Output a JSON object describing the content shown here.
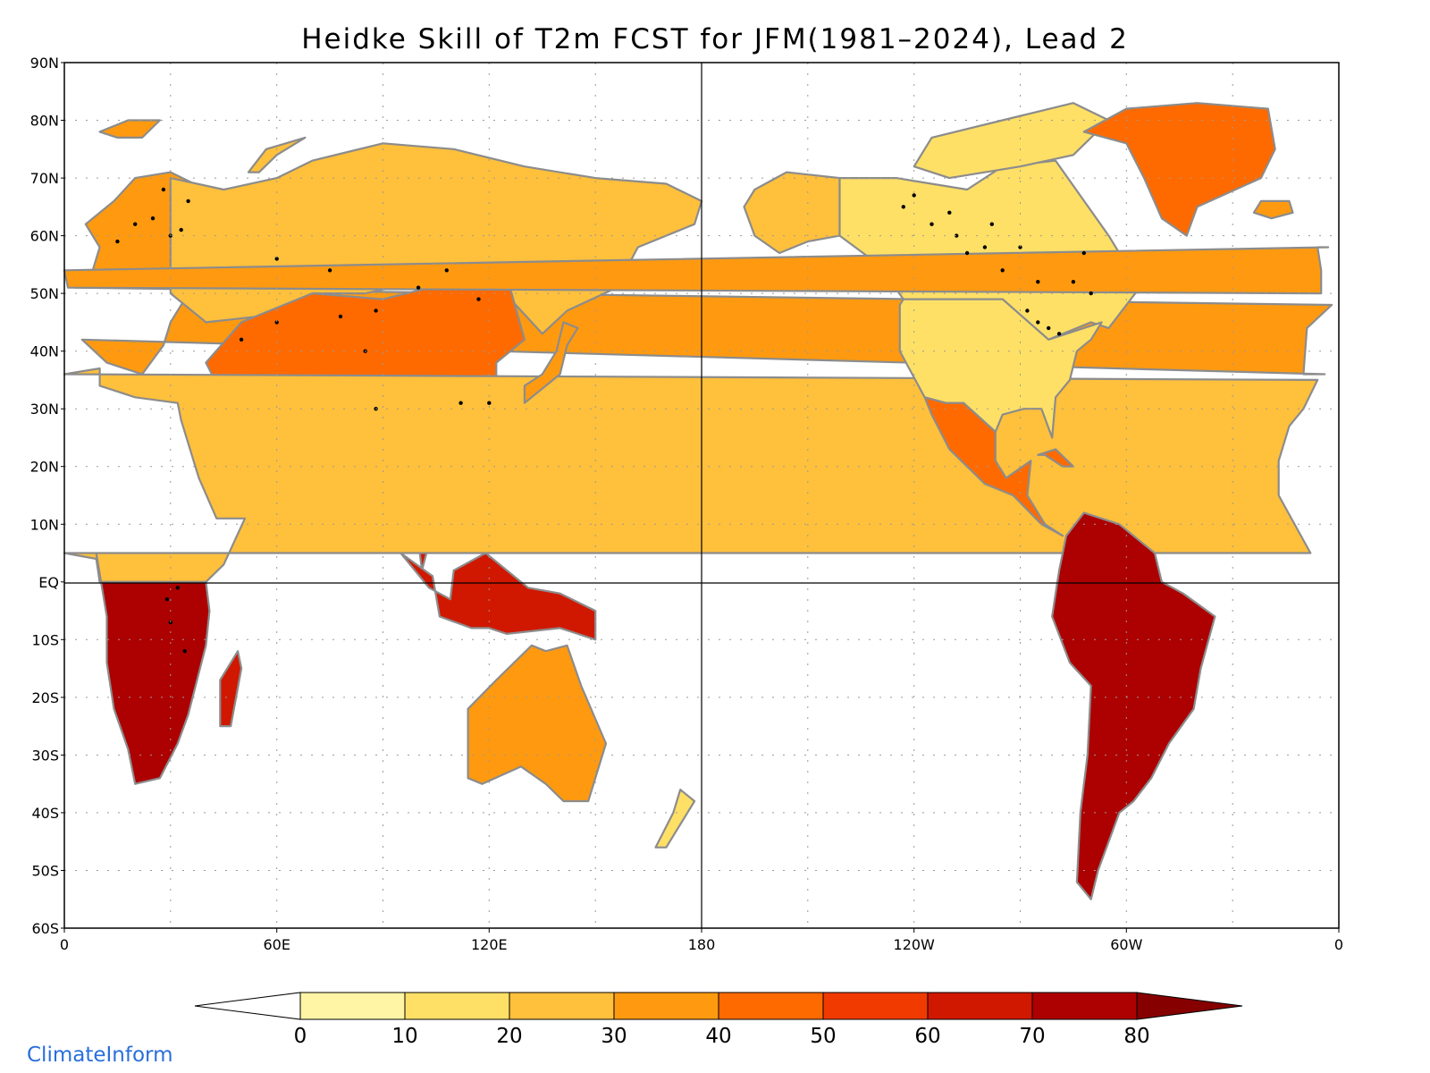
{
  "title": "Heidke Skill of T2m FCST for JFM(1981–2024), Lead 2",
  "credit": "ClimateInform",
  "colors": {
    "land_outline": "#8c8c8c",
    "lakes": "#000000",
    "grid": "#9a9a9a",
    "credit": "#2a6fdb"
  },
  "map": {
    "lat_labels": [
      "90N",
      "80N",
      "70N",
      "60N",
      "50N",
      "40N",
      "30N",
      "20N",
      "10N",
      "EQ",
      "10S",
      "20S",
      "30S",
      "40S",
      "50S",
      "60S"
    ],
    "lon_labels": [
      "0",
      "60E",
      "120E",
      "180",
      "120W",
      "60W",
      "0"
    ]
  },
  "colorbar": {
    "ticks": [
      "0",
      "10",
      "20",
      "30",
      "40",
      "50",
      "60",
      "70",
      "80"
    ],
    "colors": [
      "#ffffff",
      "#fff5a5",
      "#ffe066",
      "#ffc03c",
      "#ff9a10",
      "#ff6a00",
      "#f03a00",
      "#d01800",
      "#ad0000",
      "#860000"
    ]
  },
  "regions": [
    {
      "name": "Europe",
      "color": "#ff9a10",
      "pts": [
        [
          -10,
          36
        ],
        [
          -9,
          44
        ],
        [
          -2,
          48
        ],
        [
          3,
          51
        ],
        [
          8,
          54
        ],
        [
          10,
          58
        ],
        [
          6,
          62
        ],
        [
          14,
          66
        ],
        [
          20,
          70
        ],
        [
          30,
          71
        ],
        [
          40,
          68
        ],
        [
          40,
          55
        ],
        [
          30,
          45
        ],
        [
          28,
          41
        ],
        [
          22,
          36
        ],
        [
          12,
          38
        ],
        [
          5,
          42
        ],
        [
          -4,
          36
        ]
      ]
    },
    {
      "name": "Russia",
      "color": "#ffc03c",
      "pts": [
        [
          30,
          70
        ],
        [
          45,
          68
        ],
        [
          60,
          70
        ],
        [
          70,
          73
        ],
        [
          90,
          76
        ],
        [
          110,
          75
        ],
        [
          130,
          72
        ],
        [
          150,
          70
        ],
        [
          170,
          69
        ],
        [
          180,
          66
        ],
        [
          178,
          62
        ],
        [
          162,
          58
        ],
        [
          156,
          51
        ],
        [
          142,
          47
        ],
        [
          135,
          43
        ],
        [
          120,
          53
        ],
        [
          100,
          52
        ],
        [
          85,
          50
        ],
        [
          70,
          50
        ],
        [
          55,
          46
        ],
        [
          40,
          45
        ],
        [
          30,
          50
        ]
      ]
    },
    {
      "name": "Asia-south",
      "color": "#ff6a00",
      "pts": [
        [
          50,
          45
        ],
        [
          70,
          50
        ],
        [
          90,
          49
        ],
        [
          110,
          52
        ],
        [
          125,
          53
        ],
        [
          130,
          42
        ],
        [
          122,
          38
        ],
        [
          122,
          30
        ],
        [
          118,
          24
        ],
        [
          108,
          21
        ],
        [
          100,
          22
        ],
        [
          92,
          26
        ],
        [
          80,
          30
        ],
        [
          70,
          35
        ],
        [
          62,
          25
        ],
        [
          57,
          25
        ],
        [
          52,
          28
        ],
        [
          45,
          32
        ],
        [
          40,
          38
        ]
      ]
    },
    {
      "name": "Arabia",
      "color": "#ff9a10",
      "pts": [
        [
          35,
          30
        ],
        [
          40,
          28
        ],
        [
          48,
          29
        ],
        [
          56,
          25
        ],
        [
          59,
          22
        ],
        [
          52,
          16
        ],
        [
          43,
          12
        ],
        [
          39,
          20
        ],
        [
          35,
          28
        ]
      ]
    },
    {
      "name": "India",
      "color": "#ff9a10",
      "pts": [
        [
          68,
          24
        ],
        [
          70,
          30
        ],
        [
          78,
          32
        ],
        [
          88,
          27
        ],
        [
          90,
          22
        ],
        [
          86,
          20
        ],
        [
          80,
          14
        ],
        [
          78,
          8
        ],
        [
          76,
          10
        ],
        [
          72,
          19
        ]
      ]
    },
    {
      "name": "SE Asia",
      "color": "#d01800",
      "pts": [
        [
          92,
          22
        ],
        [
          100,
          22
        ],
        [
          108,
          20
        ],
        [
          108,
          12
        ],
        [
          104,
          9
        ],
        [
          101,
          2
        ],
        [
          100,
          7
        ],
        [
          98,
          15
        ],
        [
          94,
          18
        ]
      ]
    },
    {
      "name": "Indonesia",
      "color": "#d01800",
      "pts": [
        [
          95,
          5
        ],
        [
          104,
          1
        ],
        [
          106,
          -6
        ],
        [
          115,
          -8
        ],
        [
          120,
          -8
        ],
        [
          125,
          -9
        ],
        [
          140,
          -8
        ],
        [
          150,
          -10
        ],
        [
          150,
          -5
        ],
        [
          140,
          -2
        ],
        [
          131,
          -1
        ],
        [
          119,
          5
        ],
        [
          110,
          2
        ],
        [
          109,
          -3
        ],
        [
          103,
          -1
        ]
      ]
    },
    {
      "name": "Africa-north",
      "color": "#ffc03c",
      "pts": [
        [
          -17,
          21
        ],
        [
          -17,
          15
        ],
        [
          -8,
          5
        ],
        [
          0,
          5
        ],
        [
          9,
          4
        ],
        [
          10,
          0
        ],
        [
          40,
          0
        ],
        [
          45,
          3
        ],
        [
          51,
          11
        ],
        [
          43,
          11
        ],
        [
          38,
          18
        ],
        [
          33,
          28
        ],
        [
          32,
          31
        ],
        [
          20,
          32
        ],
        [
          10,
          34
        ],
        [
          10,
          37
        ],
        [
          0,
          36
        ],
        [
          -6,
          35
        ],
        [
          -10,
          30
        ],
        [
          -14,
          27
        ]
      ]
    },
    {
      "name": "Africa-south",
      "color": "#ad0000",
      "pts": [
        [
          9,
          5
        ],
        [
          10,
          0
        ],
        [
          40,
          0
        ],
        [
          41,
          -5
        ],
        [
          40,
          -11
        ],
        [
          35,
          -23
        ],
        [
          32,
          -28
        ],
        [
          27,
          -34
        ],
        [
          20,
          -35
        ],
        [
          18,
          -29
        ],
        [
          14,
          -22
        ],
        [
          12,
          -14
        ],
        [
          12,
          -6
        ]
      ]
    },
    {
      "name": "Madagascar",
      "color": "#d01800",
      "pts": [
        [
          44,
          -25
        ],
        [
          47,
          -25
        ],
        [
          50,
          -15
        ],
        [
          49,
          -12
        ],
        [
          44,
          -17
        ]
      ]
    },
    {
      "name": "Australia",
      "color": "#ff9a10",
      "pts": [
        [
          114,
          -22
        ],
        [
          114,
          -34
        ],
        [
          118,
          -35
        ],
        [
          129,
          -32
        ],
        [
          136,
          -35
        ],
        [
          141,
          -38
        ],
        [
          148,
          -38
        ],
        [
          153,
          -28
        ],
        [
          146,
          -18
        ],
        [
          142,
          -11
        ],
        [
          136,
          -12
        ],
        [
          132,
          -11
        ],
        [
          122,
          -17
        ]
      ]
    },
    {
      "name": "New Zealand",
      "color": "#ffe066",
      "pts": [
        [
          172,
          -40
        ],
        [
          174,
          -36
        ],
        [
          178,
          -38
        ],
        [
          175,
          -41
        ],
        [
          170,
          -46
        ],
        [
          167,
          -46
        ]
      ]
    },
    {
      "name": "Alaska",
      "color": "#ffc03c",
      "pts": [
        [
          -168,
          65
        ],
        [
          -165,
          68
        ],
        [
          -156,
          71
        ],
        [
          -141,
          70
        ],
        [
          -141,
          60
        ],
        [
          -150,
          59
        ],
        [
          -158,
          57
        ],
        [
          -165,
          60
        ]
      ]
    },
    {
      "name": "Canada",
      "color": "#ffe066",
      "pts": [
        [
          -141,
          70
        ],
        [
          -125,
          70
        ],
        [
          -105,
          68
        ],
        [
          -95,
          72
        ],
        [
          -80,
          73
        ],
        [
          -65,
          60
        ],
        [
          -60,
          55
        ],
        [
          -55,
          52
        ],
        [
          -65,
          44
        ],
        [
          -70,
          45
        ],
        [
          -82,
          42
        ],
        [
          -95,
          49
        ],
        [
          -123,
          49
        ],
        [
          -130,
          55
        ],
        [
          -141,
          60
        ]
      ]
    },
    {
      "name": "Arctic Canada",
      "color": "#ffe066",
      "pts": [
        [
          -120,
          72
        ],
        [
          -115,
          77
        ],
        [
          -95,
          80
        ],
        [
          -75,
          83
        ],
        [
          -65,
          80
        ],
        [
          -75,
          74
        ],
        [
          -90,
          72
        ],
        [
          -110,
          70
        ]
      ]
    },
    {
      "name": "USA",
      "color": "#ffe066",
      "pts": [
        [
          -124,
          48
        ],
        [
          -124,
          40
        ],
        [
          -117,
          32
        ],
        [
          -111,
          31
        ],
        [
          -106,
          31
        ],
        [
          -97,
          26
        ],
        [
          -95,
          29
        ],
        [
          -89,
          30
        ],
        [
          -84,
          30
        ],
        [
          -81,
          25
        ],
        [
          -80,
          32
        ],
        [
          -76,
          35
        ],
        [
          -74,
          40
        ],
        [
          -70,
          42
        ],
        [
          -67,
          45
        ],
        [
          -82,
          42
        ],
        [
          -95,
          49
        ],
        [
          -123,
          49
        ]
      ]
    },
    {
      "name": "Mexico",
      "color": "#ff6a00",
      "pts": [
        [
          -117,
          32
        ],
        [
          -111,
          31
        ],
        [
          -106,
          31
        ],
        [
          -97,
          26
        ],
        [
          -97,
          21
        ],
        [
          -94,
          18
        ],
        [
          -87,
          21
        ],
        [
          -88,
          15
        ],
        [
          -83,
          10
        ],
        [
          -78,
          8
        ],
        [
          -84,
          10
        ],
        [
          -92,
          15
        ],
        [
          -100,
          17
        ],
        [
          -105,
          20
        ],
        [
          -110,
          23
        ],
        [
          -115,
          29
        ]
      ]
    },
    {
      "name": "Greenland",
      "color": "#ff6a00",
      "pts": [
        [
          -72,
          78
        ],
        [
          -60,
          82
        ],
        [
          -40,
          83
        ],
        [
          -20,
          82
        ],
        [
          -18,
          75
        ],
        [
          -22,
          70
        ],
        [
          -40,
          65
        ],
        [
          -43,
          60
        ],
        [
          -50,
          63
        ],
        [
          -55,
          70
        ],
        [
          -60,
          76
        ]
      ]
    },
    {
      "name": "South America",
      "color": "#ad0000",
      "pts": [
        [
          -80,
          -2
        ],
        [
          -79,
          2
        ],
        [
          -77,
          8
        ],
        [
          -72,
          12
        ],
        [
          -62,
          10
        ],
        [
          -52,
          5
        ],
        [
          -50,
          0
        ],
        [
          -44,
          -2
        ],
        [
          -35,
          -6
        ],
        [
          -39,
          -15
        ],
        [
          -41,
          -22
        ],
        [
          -48,
          -28
        ],
        [
          -53,
          -34
        ],
        [
          -58,
          -38
        ],
        [
          -62,
          -40
        ],
        [
          -65,
          -45
        ],
        [
          -68,
          -50
        ],
        [
          -70,
          -55
        ],
        [
          -74,
          -52
        ],
        [
          -73,
          -40
        ],
        [
          -71,
          -30
        ],
        [
          -70,
          -18
        ],
        [
          -76,
          -14
        ],
        [
          -81,
          -6
        ]
      ]
    },
    {
      "name": "Iceland",
      "color": "#ff9a10",
      "pts": [
        [
          -24,
          64
        ],
        [
          -22,
          66
        ],
        [
          -14,
          66
        ],
        [
          -13,
          64
        ],
        [
          -19,
          63
        ]
      ]
    },
    {
      "name": "UK",
      "color": "#ff9a10",
      "pts": [
        [
          -5,
          50
        ],
        [
          1,
          51
        ],
        [
          0,
          54
        ],
        [
          -3,
          58
        ],
        [
          -6,
          58
        ],
        [
          -5,
          54
        ]
      ]
    },
    {
      "name": "Japan",
      "color": "#ff9a10",
      "pts": [
        [
          130,
          31
        ],
        [
          136,
          34
        ],
        [
          140,
          36
        ],
        [
          142,
          41
        ],
        [
          145,
          44
        ],
        [
          141,
          45
        ],
        [
          139,
          40
        ],
        [
          135,
          36
        ],
        [
          130,
          34
        ]
      ]
    },
    {
      "name": "Svalbard",
      "color": "#ff9a10",
      "pts": [
        [
          10,
          78
        ],
        [
          18,
          80
        ],
        [
          27,
          80
        ],
        [
          22,
          77
        ],
        [
          15,
          77
        ]
      ]
    },
    {
      "name": "Novaya Zemlya",
      "color": "#ffc03c",
      "pts": [
        [
          52,
          71
        ],
        [
          57,
          75
        ],
        [
          68,
          77
        ],
        [
          60,
          74
        ],
        [
          55,
          71
        ]
      ]
    },
    {
      "name": "Cuba",
      "color": "#ff6a00",
      "pts": [
        [
          -85,
          22
        ],
        [
          -80,
          23
        ],
        [
          -75,
          20
        ],
        [
          -78,
          20
        ],
        [
          -83,
          22
        ]
      ]
    }
  ],
  "lakes": [
    [
      -88,
      47
    ],
    [
      -85,
      45
    ],
    [
      -82,
      44
    ],
    [
      -79,
      43
    ],
    [
      -105,
      57
    ],
    [
      -115,
      62
    ],
    [
      -123,
      65
    ],
    [
      -95,
      54
    ],
    [
      -108,
      60
    ],
    [
      -120,
      67
    ],
    [
      -98,
      62
    ],
    [
      -90,
      58
    ],
    [
      -100,
      58
    ],
    [
      -110,
      64
    ],
    [
      -85,
      52
    ],
    [
      -75,
      52
    ],
    [
      -70,
      50
    ],
    [
      -72,
      57
    ],
    [
      32,
      -1
    ],
    [
      30,
      -7
    ],
    [
      34,
      -12
    ],
    [
      29,
      -3
    ],
    [
      108,
      54
    ],
    [
      88,
      47
    ],
    [
      78,
      46
    ],
    [
      50,
      42
    ],
    [
      60,
      45
    ],
    [
      33,
      61
    ],
    [
      30,
      60
    ],
    [
      15,
      59
    ],
    [
      20,
      62
    ],
    [
      25,
      63
    ],
    [
      28,
      68
    ],
    [
      35,
      66
    ],
    [
      60,
      56
    ],
    [
      75,
      54
    ],
    [
      100,
      51
    ],
    [
      117,
      49
    ],
    [
      112,
      31
    ],
    [
      120,
      31
    ],
    [
      88,
      30
    ],
    [
      85,
      40
    ]
  ]
}
